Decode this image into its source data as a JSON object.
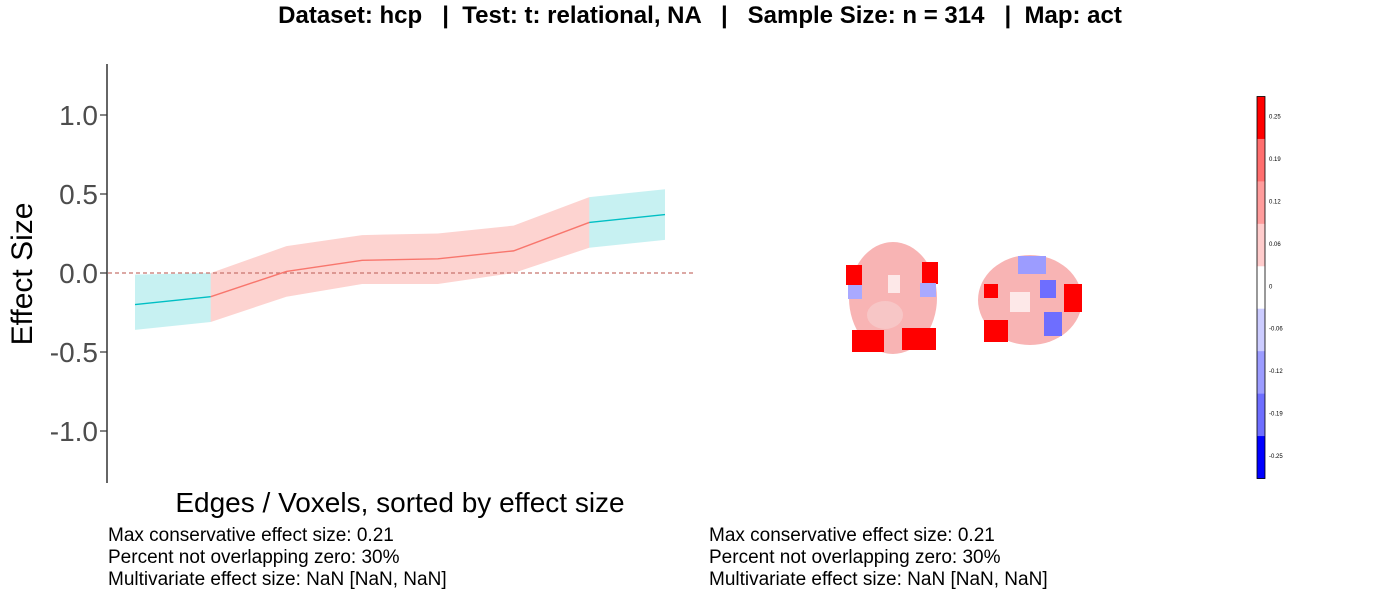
{
  "title": "Dataset: hcp   |  Test: t: relational, NA   |   Sample Size: n = 314   |  Map: act",
  "chart_data": {
    "type": "line",
    "xlabel": "Edges / Voxels, sorted by effect size",
    "ylabel": "Effect Size",
    "ylim": [
      -1.3,
      1.3
    ],
    "y_ticks": [
      1.0,
      0.5,
      0.0,
      -0.5,
      -1.0
    ],
    "y_tick_labels": [
      "1.0",
      "0.5",
      "0.0",
      "-0.5",
      "-1.0"
    ],
    "reference_line": 0.0,
    "points": [
      {
        "x": 1,
        "y": -0.2,
        "lower": -0.36,
        "upper": -0.01
      },
      {
        "x": 2,
        "y": -0.15,
        "lower": -0.31,
        "upper": 0.0
      },
      {
        "x": 3,
        "y": 0.01,
        "lower": -0.15,
        "upper": 0.17
      },
      {
        "x": 4,
        "y": 0.08,
        "lower": -0.07,
        "upper": 0.24
      },
      {
        "x": 5,
        "y": 0.09,
        "lower": -0.07,
        "upper": 0.25
      },
      {
        "x": 6,
        "y": 0.14,
        "lower": 0.0,
        "upper": 0.3
      },
      {
        "x": 7,
        "y": 0.32,
        "lower": 0.16,
        "upper": 0.48
      },
      {
        "x": 8,
        "y": 0.37,
        "lower": 0.21,
        "upper": 0.53
      }
    ],
    "segment_colors": {
      "overlapping_zero": "#F8766D",
      "not_overlapping_zero": "#00BFC4"
    },
    "colorbar_labels": [
      "0.25",
      "0.19",
      "0.12",
      "0.06",
      "0",
      "-0.06",
      "-0.12",
      "-0.19",
      "-0.25"
    ],
    "colorbar_colors": [
      "#ff0000",
      "#ff6e6e",
      "#ff9c9c",
      "#ffcccc",
      "#ffffff",
      "#ccccff",
      "#9c9cff",
      "#6e6eff",
      "#0000ff"
    ]
  },
  "stats_left": {
    "line1": "Max conservative effect size: 0.21",
    "line2": "Percent not overlapping zero: 30%",
    "line3": "Multivariate effect size: NaN [NaN, NaN]"
  },
  "stats_right": {
    "line1": "Max conservative effect size: 0.21",
    "line2": "Percent not overlapping zero: 30%",
    "line3": "Multivariate effect size: NaN [NaN, NaN]"
  }
}
